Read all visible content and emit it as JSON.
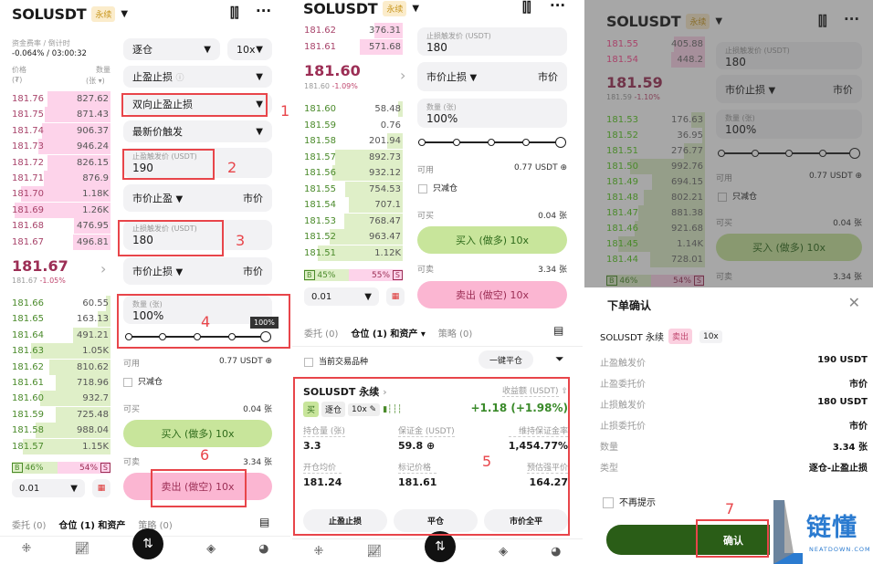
{
  "symbol": "SOLUSDT",
  "perp_badge": "永续",
  "colors": {
    "accent_red": "#e8454a",
    "buy": "#c8e59b",
    "sell": "#fbb6d2",
    "confirm": "#2a5d17"
  },
  "p1": {
    "funding_label": "资金费率 / 倒计时",
    "funding_value": "-0.064% / 03:00:32",
    "price_label": "价格",
    "price_unit": "(₮)",
    "qty_label": "数量",
    "qty_unit": "(张 ▾)",
    "asks": [
      [
        "181.76",
        "827.62"
      ],
      [
        "181.75",
        "871.43"
      ],
      [
        "181.74",
        "906.37"
      ],
      [
        "181.73",
        "946.24"
      ],
      [
        "181.72",
        "826.15"
      ],
      [
        "181.71",
        "876.9"
      ],
      [
        "181.70",
        "1.18K"
      ],
      [
        "181.69",
        "1.26K"
      ],
      [
        "181.68",
        "476.95"
      ],
      [
        "181.67",
        "496.81"
      ]
    ],
    "last_price": "181.67",
    "last_sub": "181.67",
    "last_change": "-1.05%",
    "bids": [
      [
        "181.66",
        "60.55"
      ],
      [
        "181.65",
        "163.13"
      ],
      [
        "181.64",
        "491.21"
      ],
      [
        "181.63",
        "1.05K"
      ],
      [
        "181.62",
        "810.62"
      ],
      [
        "181.61",
        "718.96"
      ],
      [
        "181.60",
        "932.7"
      ],
      [
        "181.59",
        "725.48"
      ],
      [
        "181.58",
        "988.04"
      ],
      [
        "181.57",
        "1.15K"
      ]
    ],
    "buy_ratio": "46%",
    "sell_ratio": "54%",
    "tick": "0.01",
    "margin_mode": "逐仓",
    "leverage": "10x",
    "order_type": "止盈止损",
    "tpsl_mode": "双向止盈止损",
    "trigger_type": "最新价触发",
    "tp_label": "止盈触发价 (USDT)",
    "tp_value": "190",
    "tp_order": "市价止盈",
    "tp_price": "市价",
    "sl_label": "止损触发价 (USDT)",
    "sl_value": "180",
    "sl_order": "市价止损",
    "sl_price": "市价",
    "qty_field_label": "数量 (张)",
    "qty_value": "100%",
    "slider_tooltip": "100%",
    "slider_percent": 100,
    "available_label": "可用",
    "available_value": "0.77 USDT",
    "reduce_only": "只减仓",
    "can_buy_label": "可买",
    "can_buy_value": "0.04 张",
    "buy_button": "买入 (做多) 10x",
    "can_sell_label": "可卖",
    "can_sell_value": "3.34 张",
    "sell_button": "卖出 (做空) 10x",
    "tabs": [
      "委托 (0)",
      "仓位 (1) 和资产",
      "策略 (0)"
    ],
    "annotations": [
      "1",
      "2",
      "3",
      "4",
      "6"
    ]
  },
  "p2": {
    "asks": [
      [
        "181.62",
        "376.31"
      ],
      [
        "181.61",
        "571.68"
      ]
    ],
    "last_price": "181.60",
    "last_sub": "181.60",
    "last_change": "-1.09%",
    "bids": [
      [
        "181.60",
        "58.48"
      ],
      [
        "181.59",
        "0.76"
      ],
      [
        "181.58",
        "201.94"
      ],
      [
        "181.57",
        "892.73"
      ],
      [
        "181.56",
        "932.12"
      ],
      [
        "181.55",
        "754.53"
      ],
      [
        "181.54",
        "707.1"
      ],
      [
        "181.53",
        "768.47"
      ],
      [
        "181.52",
        "963.47"
      ],
      [
        "181.51",
        "1.12K"
      ]
    ],
    "buy_ratio": "45%",
    "sell_ratio": "55%",
    "tick": "0.01",
    "current_symbol_only": "当前交易品种",
    "close_all": "一键平仓",
    "position": {
      "title": "SOLUSDT 永续",
      "side": "买",
      "mode": "逐仓",
      "leverage": "10x",
      "pnl_label": "收益额 (USDT)",
      "pnl": "+1.18 (+1.98%)",
      "fields": [
        [
          "持仓量 (张)",
          "3.3"
        ],
        [
          "保证金 (USDT)",
          "59.8"
        ],
        [
          "维持保证金率",
          "1,454.77%"
        ],
        [
          "开仓均价",
          "181.24"
        ],
        [
          "标记价格",
          "181.61"
        ],
        [
          "预估强平价",
          "164.27"
        ]
      ],
      "buttons": [
        "止盈止损",
        "平仓",
        "市价全平"
      ]
    },
    "annotation": "5"
  },
  "p3": {
    "asks": [
      [
        "181.55",
        "405.88"
      ],
      [
        "181.54",
        "448.2"
      ]
    ],
    "last_price": "181.59",
    "last_sub": "181.59",
    "last_change": "-1.10%",
    "bids": [
      [
        "181.53",
        "176.63"
      ],
      [
        "181.52",
        "36.95"
      ],
      [
        "181.51",
        "276.77"
      ],
      [
        "181.50",
        "992.76"
      ],
      [
        "181.49",
        "694.15"
      ],
      [
        "181.48",
        "802.21"
      ],
      [
        "181.47",
        "881.38"
      ],
      [
        "181.46",
        "921.68"
      ],
      [
        "181.45",
        "1.14K"
      ],
      [
        "181.44",
        "728.01"
      ]
    ],
    "buy_ratio": "46%",
    "sell_ratio": "54%",
    "dialog": {
      "title": "下单确认",
      "symbol": "SOLUSDT 永续",
      "side": "卖出",
      "leverage": "10x",
      "rows": [
        [
          "止盈触发价",
          "190 USDT"
        ],
        [
          "止盈委托价",
          "市价"
        ],
        [
          "止损触发价",
          "180 USDT"
        ],
        [
          "止损委托价",
          "市价"
        ],
        [
          "数量",
          "3.34 张"
        ],
        [
          "类型",
          "逐仓-止盈止损"
        ]
      ],
      "dont_show": "不再提示",
      "confirm": "确认"
    },
    "annotation": "7",
    "watermark": {
      "name": "链懂",
      "domain": "NEATDOWN.COM"
    }
  }
}
